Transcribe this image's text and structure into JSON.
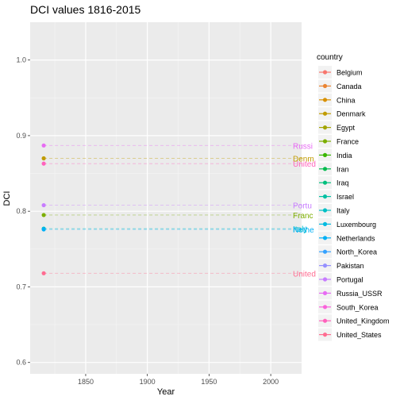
{
  "chart_data": {
    "type": "scatter",
    "title": "DCI values 1816-2015",
    "xlabel": "Year",
    "ylabel": "DCI",
    "xlim": [
      1805,
      2025
    ],
    "ylim": [
      0.585,
      1.05
    ],
    "x_ticks": [
      1850,
      1900,
      1950,
      2000
    ],
    "y_ticks": [
      0.6,
      0.7,
      0.8,
      0.9,
      1.0
    ],
    "y_tick_labels": [
      "0.6",
      "0.7",
      "0.8",
      "0.9",
      "1.0"
    ],
    "grid": true,
    "legend": {
      "title": "country",
      "position": "right",
      "entries": [
        {
          "name": "Belgium",
          "color": "#F8766D"
        },
        {
          "name": "Canada",
          "color": "#EA8331"
        },
        {
          "name": "China",
          "color": "#D89000"
        },
        {
          "name": "Denmark",
          "color": "#C09B00"
        },
        {
          "name": "Egypt",
          "color": "#A3A500"
        },
        {
          "name": "France",
          "color": "#7CAE00"
        },
        {
          "name": "India",
          "color": "#39B600"
        },
        {
          "name": "Iran",
          "color": "#00BB4E"
        },
        {
          "name": "Iraq",
          "color": "#00BF7D"
        },
        {
          "name": "Israel",
          "color": "#00C1A3"
        },
        {
          "name": "Italy",
          "color": "#00BFC4"
        },
        {
          "name": "Luxembourg",
          "color": "#00BAE0"
        },
        {
          "name": "Netherlands",
          "color": "#00B0F6"
        },
        {
          "name": "North_Korea",
          "color": "#35A2FF"
        },
        {
          "name": "Pakistan",
          "color": "#9590FF"
        },
        {
          "name": "Portugal",
          "color": "#C77CFF"
        },
        {
          "name": "Russia_USSR",
          "color": "#E76BF3"
        },
        {
          "name": "South_Korea",
          "color": "#FA62DB"
        },
        {
          "name": "United_Kingdom",
          "color": "#FF62BC"
        },
        {
          "name": "United_States",
          "color": "#FF6C91"
        }
      ]
    },
    "series": [
      {
        "country": "Russia_USSR",
        "x": 1816,
        "y": 0.887,
        "end_label": "Russi",
        "color": "#E76BF3"
      },
      {
        "country": "Denmark",
        "x": 1816,
        "y": 0.87,
        "end_label": "Denm",
        "color": "#C09B00"
      },
      {
        "country": "United_Kingdom",
        "x": 1816,
        "y": 0.863,
        "end_label": "United",
        "color": "#FF62BC"
      },
      {
        "country": "Portugal",
        "x": 1816,
        "y": 0.808,
        "end_label": "Portu",
        "color": "#C77CFF"
      },
      {
        "country": "France",
        "x": 1816,
        "y": 0.795,
        "end_label": "Franc",
        "color": "#7CAE00"
      },
      {
        "country": "Italy",
        "x": 1816,
        "y": 0.777,
        "end_label": "Italy",
        "color": "#00BFC4"
      },
      {
        "country": "Netherlands",
        "x": 1816,
        "y": 0.776,
        "end_label": "Nethe",
        "color": "#00B0F6"
      },
      {
        "country": "United_States",
        "x": 1816,
        "y": 0.718,
        "end_label": "United",
        "color": "#FF6C91"
      }
    ]
  }
}
